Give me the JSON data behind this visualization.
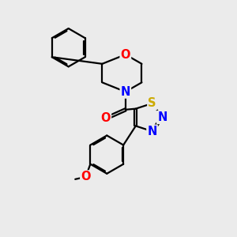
{
  "bg_color": "#ebebeb",
  "bond_color": "#000000",
  "bond_width": 1.6,
  "atom_colors": {
    "O": "#ff0000",
    "N": "#0000ff",
    "S": "#ccaa00",
    "C": "#000000"
  },
  "font_size_atom": 10.5
}
